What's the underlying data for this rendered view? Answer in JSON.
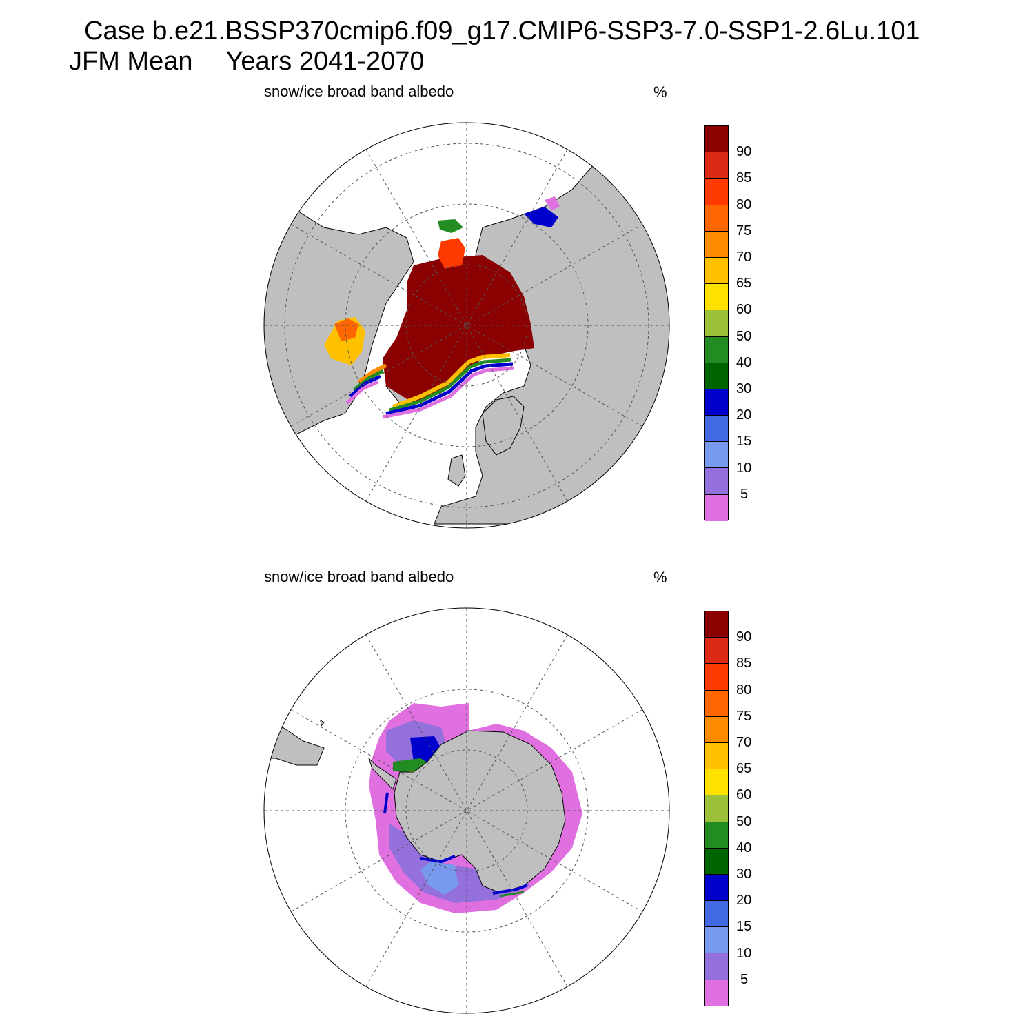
{
  "header": {
    "case_title": "Case b.e21.BSSP370cmip6.f09_g17.CMIP6-SSP3-7.0-SSP1-2.6Lu.101",
    "season": "JFM Mean",
    "years": "Years 2041-2070"
  },
  "panels": [
    {
      "title": "snow/ice broad band albedo",
      "units": "%",
      "hemisphere": "north"
    },
    {
      "title": "snow/ice broad band albedo",
      "units": "%",
      "hemisphere": "south"
    }
  ],
  "colorbar": {
    "labels": [
      "90",
      "85",
      "80",
      "75",
      "70",
      "65",
      "60",
      "50",
      "40",
      "30",
      "20",
      "15",
      "10",
      "5"
    ],
    "colors": [
      "#8b0000",
      "#dc2a14",
      "#ff3a00",
      "#ff6600",
      "#ff8c00",
      "#ffc000",
      "#ffe100",
      "#9bc13a",
      "#228b22",
      "#006400",
      "#0000cd",
      "#4169e1",
      "#7799ee",
      "#9370db",
      "#e070e0"
    ]
  },
  "map_colors": {
    "land": "#bfbfbf",
    "ocean": "#ffffff",
    "grid": "#555555"
  }
}
